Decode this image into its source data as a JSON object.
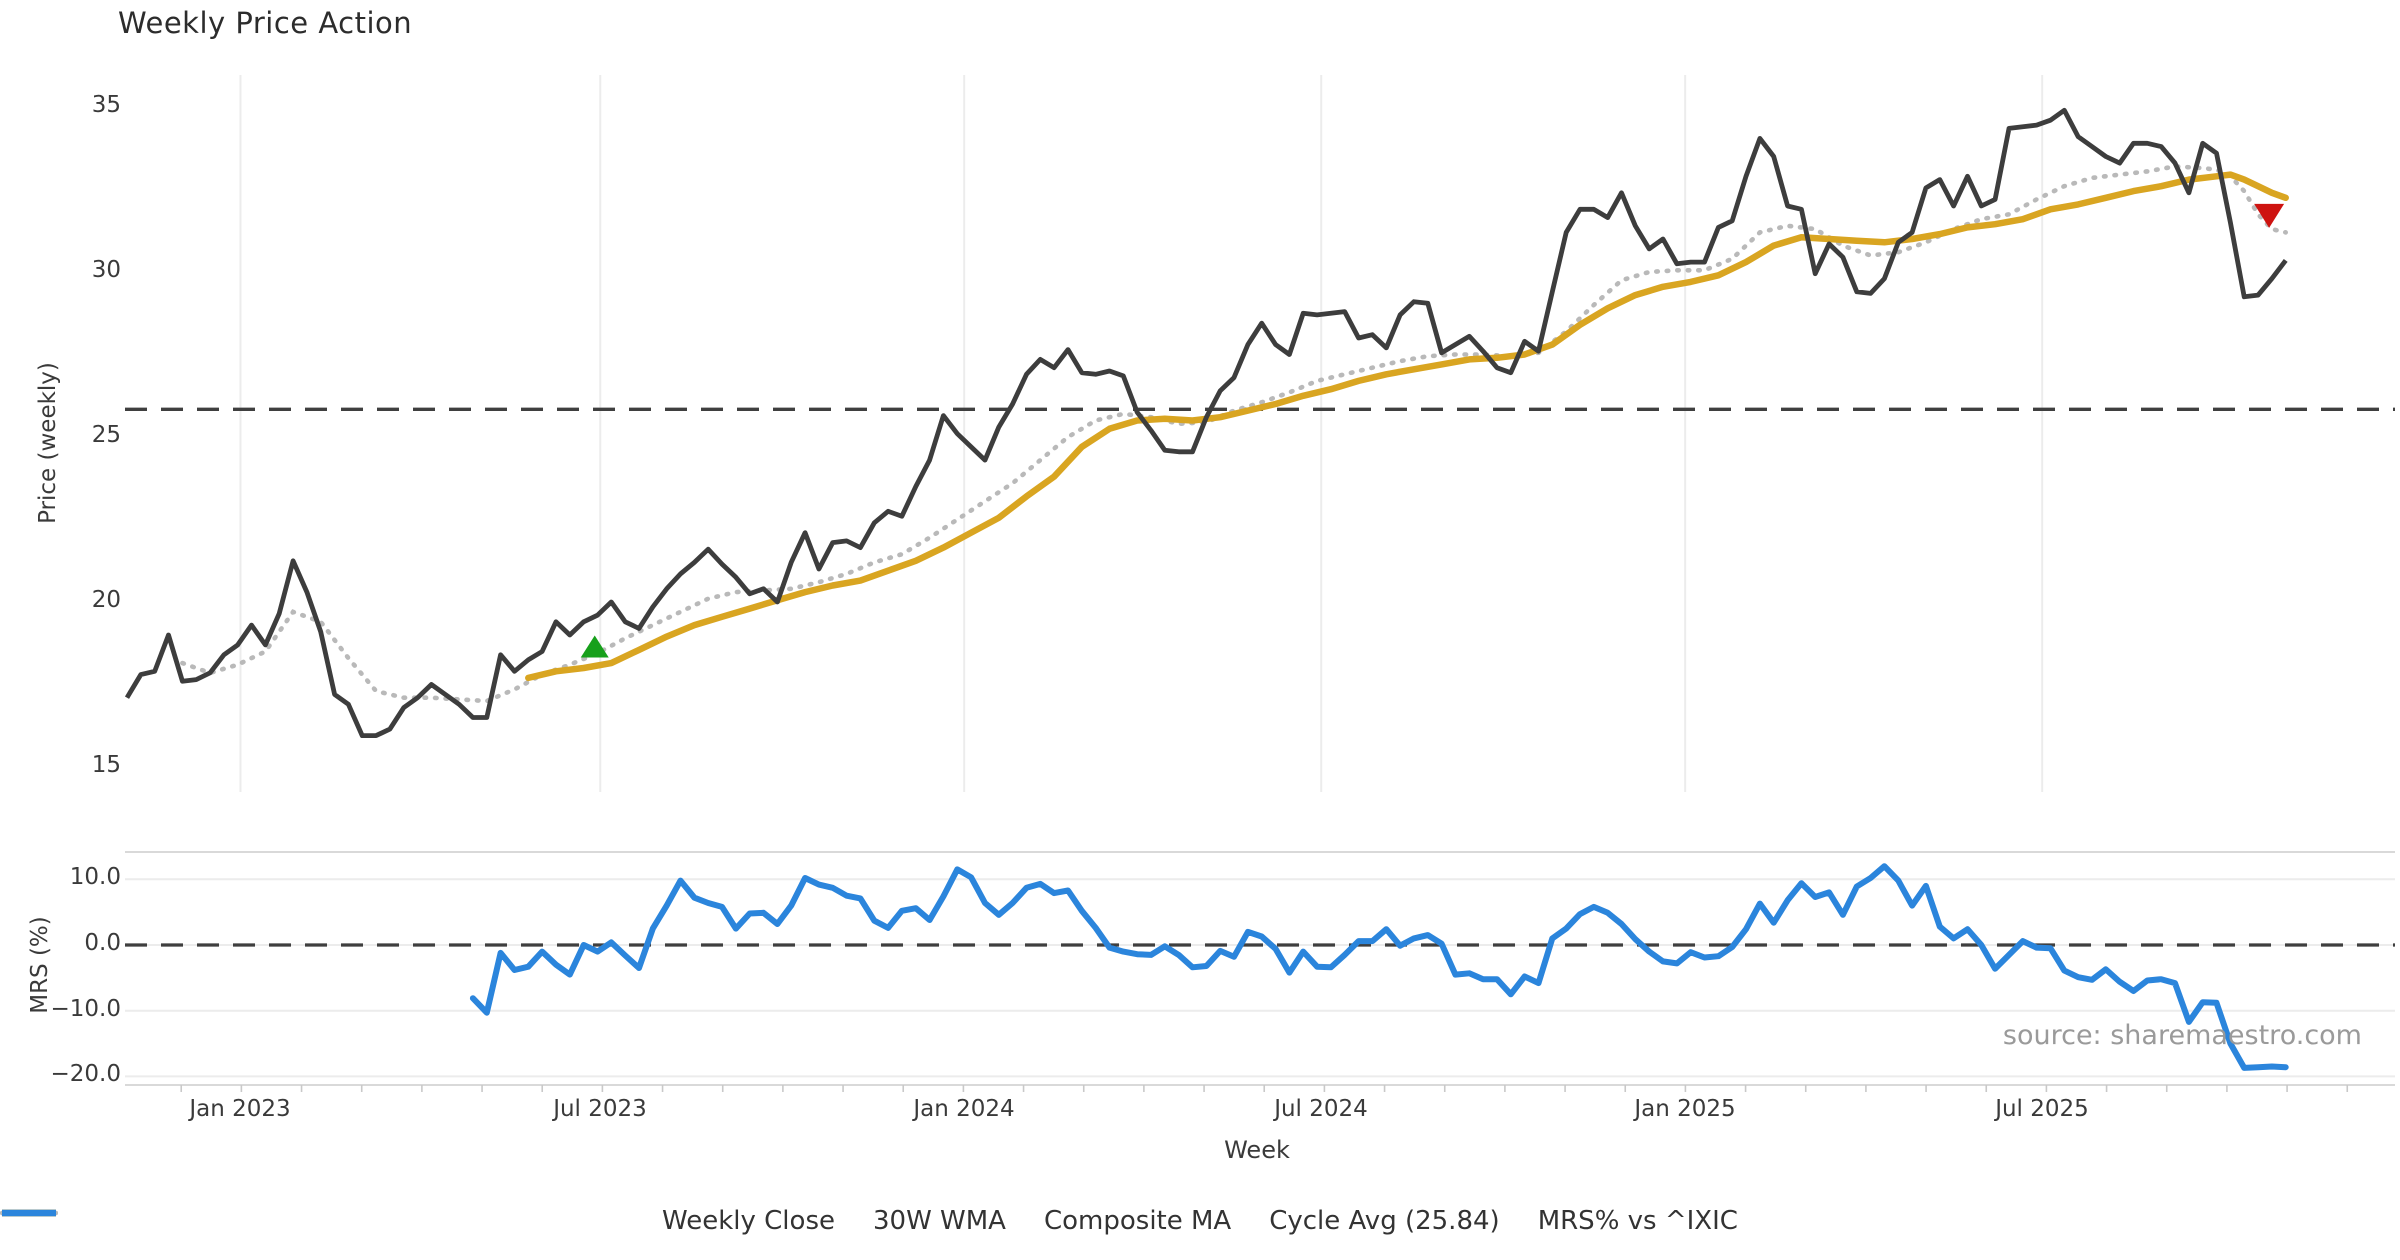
{
  "title": "Weekly Price Action",
  "source_credit": "source: sharemaestro.com",
  "colors": {
    "weekly_close": "#3d3d3d",
    "wma_30w": "#d9a521",
    "composite_ma": "#b9b9b9",
    "cycle_avg_dash": "#3f3f3f",
    "mrs_line": "#2b85dc",
    "buy_marker": "#17a01b",
    "sell_marker": "#ce1310",
    "grid": "#ececec",
    "panel_edge": "#d9d9d9",
    "tick_text": "#3a3a3a"
  },
  "chart_data": {
    "type": "line",
    "title": "Weekly Price Action",
    "xlabel": "Week",
    "x_unit": "week index, weekly data; week 0 = first week (early Nov 2022), 1 unit = 7 days",
    "x_ticks": {
      "weeks": [
        8.2,
        34.2,
        60.5,
        86.3,
        112.6,
        138.4
      ],
      "labels": [
        "Jan 2023",
        "Jul 2023",
        "Jan 2024",
        "Jul 2024",
        "Jan 2025",
        "Jul 2025"
      ]
    },
    "x_range_weeks": [
      -0.15,
      163.9
    ],
    "price_axis": {
      "label": "Price (weekly)",
      "ticks": [
        35,
        30,
        25,
        20,
        15
      ],
      "lim": [
        14.3,
        36.0
      ],
      "grid": "vertical-only"
    },
    "mrs_axis": {
      "label": "MRS (%)",
      "tick_labels": [
        "10.0",
        "0.0",
        "−10.0",
        "−20.0"
      ],
      "tick_values": [
        10,
        0,
        -10,
        -20
      ],
      "lim": [
        -21.3,
        14.2
      ],
      "grid": "horizontal-only"
    },
    "cycle_avg": 25.84,
    "series": [
      {
        "name": "Weekly Close",
        "panel": "price",
        "style": "solid",
        "color": "#3d3d3d",
        "start_week": 0,
        "step": 1,
        "values": [
          17.1,
          17.8,
          17.9,
          19.0,
          17.6,
          17.65,
          17.85,
          18.4,
          18.7,
          19.3,
          18.7,
          19.65,
          21.25,
          20.3,
          19.1,
          17.2,
          16.9,
          15.95,
          15.95,
          16.15,
          16.8,
          17.1,
          17.5,
          17.2,
          16.9,
          16.5,
          16.5,
          18.4,
          17.9,
          18.25,
          18.5,
          19.4,
          19.0,
          19.4,
          19.6,
          20.0,
          19.4,
          19.2,
          19.85,
          20.4,
          20.85,
          21.2,
          21.6,
          21.15,
          20.75,
          20.25,
          20.4,
          20.0,
          21.2,
          22.1,
          21.0,
          21.8,
          21.85,
          21.65,
          22.4,
          22.75,
          22.6,
          23.5,
          24.3,
          25.65,
          25.1,
          24.7,
          24.3,
          25.3,
          26.0,
          26.9,
          27.35,
          27.1,
          27.65,
          26.95,
          26.9,
          27.0,
          26.85,
          25.75,
          25.2,
          24.6,
          24.55,
          24.55,
          25.6,
          26.4,
          26.8,
          27.8,
          28.45,
          27.8,
          27.5,
          28.75,
          28.7,
          28.75,
          28.8,
          28.0,
          28.1,
          27.7,
          28.7,
          29.1,
          29.05,
          27.55,
          27.8,
          28.05,
          27.6,
          27.1,
          26.95,
          27.9,
          27.6,
          29.4,
          31.2,
          31.9,
          31.9,
          31.65,
          32.4,
          31.4,
          30.7,
          31.0,
          30.25,
          30.3,
          30.3,
          31.35,
          31.55,
          32.9,
          34.05,
          33.5,
          32.0,
          31.9,
          29.95,
          30.85,
          30.45,
          29.4,
          29.35,
          29.8,
          30.9,
          31.2,
          32.55,
          32.8,
          32.0,
          32.9,
          32.0,
          32.2,
          34.35,
          34.4,
          34.45,
          34.6,
          34.9,
          34.1,
          33.8,
          33.5,
          33.3,
          33.9,
          33.9,
          33.8,
          33.3,
          32.4,
          33.9,
          33.6,
          31.5,
          29.25,
          29.3,
          29.8,
          30.35
        ]
      },
      {
        "name": "30W WMA",
        "panel": "price",
        "style": "solid",
        "color": "#d9a521",
        "points": [
          [
            29,
            17.7
          ],
          [
            31,
            17.9
          ],
          [
            33,
            18.0
          ],
          [
            35,
            18.15
          ],
          [
            37,
            18.55
          ],
          [
            39,
            18.95
          ],
          [
            41,
            19.3
          ],
          [
            43,
            19.55
          ],
          [
            45,
            19.8
          ],
          [
            47,
            20.05
          ],
          [
            49,
            20.3
          ],
          [
            51,
            20.5
          ],
          [
            53,
            20.65
          ],
          [
            55,
            20.95
          ],
          [
            57,
            21.25
          ],
          [
            59,
            21.65
          ],
          [
            61,
            22.1
          ],
          [
            63,
            22.55
          ],
          [
            65,
            23.2
          ],
          [
            67,
            23.8
          ],
          [
            69,
            24.7
          ],
          [
            71,
            25.25
          ],
          [
            73,
            25.5
          ],
          [
            75,
            25.55
          ],
          [
            77,
            25.5
          ],
          [
            79,
            25.6
          ],
          [
            81,
            25.8
          ],
          [
            83,
            26.0
          ],
          [
            85,
            26.25
          ],
          [
            87,
            26.45
          ],
          [
            89,
            26.7
          ],
          [
            91,
            26.9
          ],
          [
            93,
            27.05
          ],
          [
            95,
            27.2
          ],
          [
            97,
            27.35
          ],
          [
            99,
            27.4
          ],
          [
            101,
            27.5
          ],
          [
            103,
            27.8
          ],
          [
            105,
            28.4
          ],
          [
            107,
            28.9
          ],
          [
            109,
            29.3
          ],
          [
            111,
            29.55
          ],
          [
            113,
            29.7
          ],
          [
            115,
            29.9
          ],
          [
            117,
            30.3
          ],
          [
            119,
            30.8
          ],
          [
            121,
            31.05
          ],
          [
            123,
            31.0
          ],
          [
            125,
            30.95
          ],
          [
            127,
            30.9
          ],
          [
            129,
            31.0
          ],
          [
            131,
            31.15
          ],
          [
            133,
            31.35
          ],
          [
            135,
            31.45
          ],
          [
            137,
            31.6
          ],
          [
            139,
            31.9
          ],
          [
            141,
            32.05
          ],
          [
            143,
            32.25
          ],
          [
            145,
            32.45
          ],
          [
            147,
            32.6
          ],
          [
            149,
            32.8
          ],
          [
            151,
            32.9
          ],
          [
            152,
            32.95
          ],
          [
            153,
            32.8
          ],
          [
            154,
            32.6
          ],
          [
            155,
            32.4
          ],
          [
            156,
            32.25
          ]
        ]
      },
      {
        "name": "Composite MA",
        "panel": "price",
        "style": "dotted",
        "color": "#b9b9b9",
        "points": [
          [
            4,
            18.15
          ],
          [
            6,
            17.85
          ],
          [
            8,
            18.1
          ],
          [
            10,
            18.5
          ],
          [
            12,
            19.7
          ],
          [
            14,
            19.4
          ],
          [
            16,
            18.3
          ],
          [
            18,
            17.3
          ],
          [
            20,
            17.1
          ],
          [
            22,
            17.1
          ],
          [
            24,
            17.05
          ],
          [
            26,
            17.0
          ],
          [
            28,
            17.35
          ],
          [
            30,
            17.8
          ],
          [
            32,
            18.1
          ],
          [
            34,
            18.45
          ],
          [
            36,
            18.9
          ],
          [
            38,
            19.3
          ],
          [
            40,
            19.7
          ],
          [
            42,
            20.1
          ],
          [
            44,
            20.3
          ],
          [
            46,
            20.35
          ],
          [
            48,
            20.4
          ],
          [
            50,
            20.6
          ],
          [
            52,
            20.85
          ],
          [
            54,
            21.2
          ],
          [
            56,
            21.45
          ],
          [
            58,
            21.95
          ],
          [
            60,
            22.5
          ],
          [
            62,
            23.05
          ],
          [
            64,
            23.6
          ],
          [
            66,
            24.3
          ],
          [
            68,
            25.0
          ],
          [
            70,
            25.5
          ],
          [
            72,
            25.7
          ],
          [
            74,
            25.6
          ],
          [
            76,
            25.4
          ],
          [
            78,
            25.45
          ],
          [
            80,
            25.8
          ],
          [
            82,
            26.05
          ],
          [
            84,
            26.35
          ],
          [
            86,
            26.7
          ],
          [
            88,
            26.9
          ],
          [
            90,
            27.1
          ],
          [
            92,
            27.3
          ],
          [
            94,
            27.45
          ],
          [
            96,
            27.5
          ],
          [
            98,
            27.5
          ],
          [
            100,
            27.45
          ],
          [
            102,
            27.55
          ],
          [
            104,
            28.2
          ],
          [
            106,
            29.0
          ],
          [
            108,
            29.75
          ],
          [
            110,
            30.0
          ],
          [
            112,
            30.05
          ],
          [
            114,
            30.05
          ],
          [
            116,
            30.4
          ],
          [
            118,
            31.2
          ],
          [
            120,
            31.4
          ],
          [
            122,
            31.3
          ],
          [
            124,
            30.8
          ],
          [
            126,
            30.5
          ],
          [
            128,
            30.6
          ],
          [
            130,
            30.9
          ],
          [
            132,
            31.3
          ],
          [
            134,
            31.6
          ],
          [
            136,
            31.75
          ],
          [
            138,
            32.2
          ],
          [
            140,
            32.6
          ],
          [
            142,
            32.85
          ],
          [
            144,
            32.95
          ],
          [
            146,
            33.05
          ],
          [
            148,
            33.2
          ],
          [
            150,
            33.15
          ],
          [
            151,
            33.1
          ],
          [
            152,
            32.9
          ],
          [
            153,
            32.45
          ],
          [
            154,
            31.75
          ],
          [
            155,
            31.3
          ],
          [
            156,
            31.2
          ]
        ]
      },
      {
        "name": "Cycle Avg (25.84)",
        "panel": "price",
        "style": "dashed",
        "color": "#3f3f3f",
        "value": 25.84
      },
      {
        "name": "MRS% vs ^IXIC",
        "panel": "mrs",
        "style": "solid",
        "color": "#2b85dc",
        "zero_line_dashed": true,
        "start_week": 25,
        "step": 1,
        "values": [
          -8.1,
          -10.3,
          -1.2,
          -3.8,
          -3.3,
          -1.0,
          -3.0,
          -4.5,
          0.0,
          -1.0,
          0.4,
          -1.6,
          -3.5,
          2.5,
          6.0,
          9.8,
          7.2,
          6.4,
          5.8,
          2.5,
          4.8,
          4.9,
          3.2,
          6.0,
          10.2,
          9.2,
          8.7,
          7.5,
          7.1,
          3.7,
          2.6,
          5.2,
          5.6,
          3.8,
          7.4,
          11.5,
          10.3,
          6.4,
          4.6,
          6.4,
          8.7,
          9.3,
          7.9,
          8.3,
          5.2,
          2.6,
          -0.4,
          -1.0,
          -1.4,
          -1.5,
          -0.2,
          -1.5,
          -3.4,
          -3.2,
          -0.9,
          -1.8,
          2.0,
          1.3,
          -0.6,
          -4.2,
          -1.0,
          -3.3,
          -3.4,
          -1.5,
          0.6,
          0.6,
          2.4,
          -0.1,
          1.0,
          1.5,
          0.2,
          -4.5,
          -4.3,
          -5.2,
          -5.2,
          -7.5,
          -4.8,
          -5.8,
          1.0,
          2.5,
          4.7,
          5.8,
          4.9,
          3.2,
          0.9,
          -1.0,
          -2.5,
          -2.8,
          -1.1,
          -1.9,
          -1.7,
          -0.3,
          2.4,
          6.3,
          3.4,
          6.8,
          9.4,
          7.3,
          8.0,
          4.6,
          8.9,
          10.2,
          12.0,
          9.8,
          6.0,
          9.0,
          2.8,
          1.0,
          2.4,
          0.0,
          -3.6,
          -1.5,
          0.6,
          -0.4,
          -0.5,
          -3.9,
          -4.9,
          -5.3,
          -3.7,
          -5.6,
          -7.0,
          -5.4,
          -5.2,
          -5.8,
          -11.7,
          -8.7,
          -8.8,
          -15.0,
          -18.7,
          -18.6,
          -18.5,
          -18.6
        ]
      }
    ],
    "markers": [
      {
        "name": "buy-signal",
        "shape": "triangle-up",
        "color": "#17a01b",
        "week": 33.8,
        "price": 18.65
      },
      {
        "name": "sell-signal",
        "shape": "triangle-down",
        "color": "#ce1310",
        "week": 154.8,
        "price": 31.7
      }
    ]
  },
  "legend": {
    "items": [
      {
        "label": "Weekly Close",
        "swatch": "solid-thick",
        "color": "#3d3d3d"
      },
      {
        "label": "30W WMA",
        "swatch": "solid-thick",
        "color": "#d9a521"
      },
      {
        "label": "Composite MA",
        "swatch": "dotted",
        "color": "#b9b9b9"
      },
      {
        "label": "Cycle Avg (25.84)",
        "swatch": "dashed",
        "color": "#3f3f3f"
      },
      {
        "label": "MRS% vs ^IXIC",
        "swatch": "solid-thick",
        "color": "#2b85dc"
      }
    ]
  }
}
